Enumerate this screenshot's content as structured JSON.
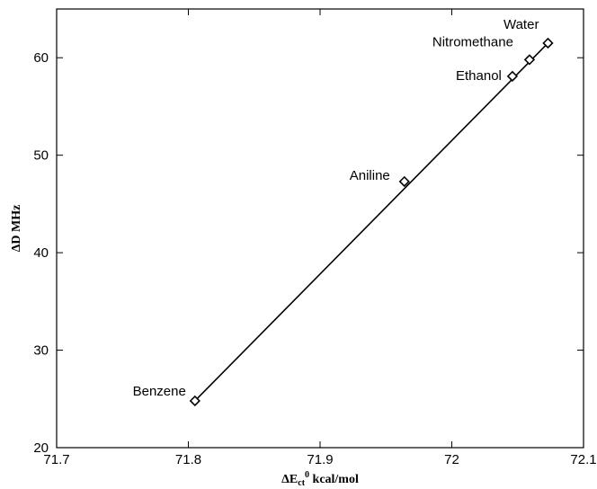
{
  "chart_data": {
    "type": "scatter",
    "xlabel": "ΔE",
    "xlabel_subscript": "ct",
    "xlabel_superscript": "0",
    "xlabel_units": " kcal/mol",
    "ylabel": "ΔD MHz",
    "xlim": [
      71.7,
      72.1
    ],
    "ylim": [
      20,
      65
    ],
    "xticks": [
      71.7,
      71.8,
      71.9,
      72,
      72.1
    ],
    "yticks": [
      20,
      30,
      40,
      50,
      60
    ],
    "grid": false,
    "marker": "diamond",
    "fit_line": true,
    "points": [
      {
        "label": "Benzene",
        "x": 71.805,
        "y": 24.8
      },
      {
        "label": "Aniline",
        "x": 71.964,
        "y": 47.3
      },
      {
        "label": "Ethanol",
        "x": 72.046,
        "y": 58.1
      },
      {
        "label": "Nitromethane",
        "x": 72.059,
        "y": 59.8
      },
      {
        "label": "Water",
        "x": 72.073,
        "y": 61.5
      }
    ]
  }
}
